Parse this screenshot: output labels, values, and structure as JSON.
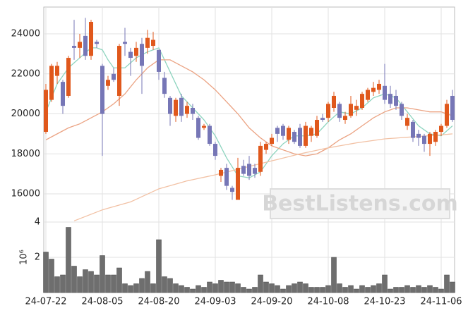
{
  "chart_data": [
    {
      "type": "candlestick",
      "categories": [
        "24-07-22",
        null,
        null,
        null,
        null,
        null,
        null,
        null,
        null,
        null,
        "24-08-05",
        null,
        null,
        null,
        null,
        null,
        null,
        null,
        null,
        null,
        "24-08-20",
        null,
        null,
        null,
        null,
        null,
        null,
        null,
        null,
        null,
        "24-09-03",
        null,
        null,
        null,
        null,
        null,
        null,
        null,
        null,
        null,
        "24-09-20",
        null,
        null,
        null,
        null,
        null,
        null,
        null,
        null,
        null,
        "24-10-08",
        null,
        null,
        null,
        null,
        null,
        null,
        null,
        null,
        null,
        "24-10-23",
        null,
        null,
        null,
        null,
        null,
        null,
        null,
        null,
        null,
        "24-11-06",
        null,
        null
      ],
      "open": [
        19100,
        20700,
        21900,
        21600,
        20900,
        23400,
        23300,
        23900,
        22900,
        23600,
        22400,
        21400,
        22000,
        20900,
        23600,
        23100,
        22900,
        23500,
        23300,
        23400,
        23200,
        21800,
        20800,
        19900,
        20800,
        20000,
        20300,
        19800,
        19300,
        19400,
        18500,
        16900,
        17300,
        16300,
        15700,
        17400,
        17500,
        17300,
        17100,
        18200,
        18500,
        19300,
        19400,
        18700,
        19100,
        19300,
        18400,
        18900,
        18900,
        19800,
        19800,
        20300,
        20500,
        19700,
        19900,
        20200,
        20300,
        20700,
        21100,
        21200,
        21400,
        21000,
        20900,
        20500,
        19400,
        19600,
        19000,
        18900,
        18500,
        18600,
        19100,
        19400,
        20900
      ],
      "high": [
        21500,
        22500,
        22600,
        21700,
        22900,
        24700,
        24000,
        24800,
        24700,
        23700,
        22500,
        21900,
        22300,
        23500,
        24300,
        23300,
        23600,
        23800,
        24200,
        24100,
        23200,
        22100,
        20900,
        20800,
        21000,
        20600,
        20500,
        19900,
        19500,
        19500,
        18600,
        17300,
        17500,
        16400,
        17800,
        17700,
        17900,
        17500,
        18600,
        18600,
        19000,
        19400,
        19500,
        19400,
        19200,
        19500,
        19600,
        19400,
        19900,
        20000,
        20600,
        21100,
        20600,
        20100,
        20900,
        20700,
        21100,
        21300,
        21600,
        21700,
        22500,
        21400,
        21200,
        20600,
        20000,
        19700,
        19200,
        19000,
        19100,
        19200,
        19500,
        20700,
        21200
      ],
      "low": [
        19000,
        20600,
        21500,
        20000,
        20800,
        22700,
        22800,
        22700,
        22700,
        23300,
        17900,
        21200,
        21600,
        20400,
        22900,
        21900,
        22600,
        21000,
        23000,
        23200,
        21700,
        20800,
        19400,
        19600,
        19600,
        19800,
        19700,
        18700,
        19200,
        18400,
        17700,
        16600,
        16200,
        15700,
        15700,
        16900,
        16700,
        16800,
        16900,
        18000,
        18400,
        18600,
        18700,
        18500,
        18500,
        18300,
        18300,
        18600,
        18800,
        19600,
        19600,
        20100,
        19600,
        19500,
        19800,
        19900,
        20200,
        20600,
        20900,
        21000,
        20500,
        20300,
        20200,
        19700,
        19200,
        18600,
        18400,
        18100,
        17900,
        18400,
        18900,
        19300,
        19600
      ],
      "close": [
        21200,
        22400,
        22400,
        20400,
        22800,
        23300,
        23600,
        22900,
        24600,
        23500,
        20000,
        21700,
        21700,
        23400,
        23500,
        22800,
        23300,
        22400,
        23800,
        23700,
        22100,
        21000,
        20000,
        20700,
        19900,
        20400,
        20000,
        18800,
        19400,
        18500,
        17900,
        17200,
        16400,
        16100,
        17300,
        17000,
        16900,
        17000,
        18400,
        18500,
        18800,
        19000,
        18900,
        19300,
        18600,
        18400,
        19400,
        19300,
        19700,
        19700,
        20500,
        20900,
        19800,
        19900,
        20500,
        20400,
        21000,
        21200,
        21300,
        21500,
        20700,
        20500,
        20400,
        19900,
        19800,
        18800,
        18800,
        18500,
        19000,
        19100,
        19400,
        20500,
        19700
      ],
      "up_color": "#e0581c",
      "down_color": "#7676b6",
      "series": [
        {
          "color": "#8ed4bf",
          "values": [
            20100,
            20800,
            21500,
            21900,
            22300,
            22550,
            22800,
            23050,
            23300,
            23300,
            23200,
            22700,
            22300,
            22300,
            22300,
            22550,
            22800,
            22950,
            23100,
            23200,
            23300,
            22700,
            22100,
            21500,
            20900,
            20600,
            20300,
            20000,
            19700,
            19300,
            18900,
            18350,
            17800,
            17350,
            16900,
            16850,
            16800,
            16950,
            17100,
            17500,
            17900,
            18200,
            18500,
            18700,
            18900,
            18900,
            18900,
            18950,
            19000,
            19300,
            19600,
            19850,
            20100,
            20050,
            20000,
            20150,
            20300,
            20550,
            20800,
            20900,
            21000,
            20900,
            20800,
            20450,
            20100,
            19750,
            19400,
            19200,
            19000,
            18950,
            18900,
            19150,
            19400
          ]
        },
        {
          "color": "#eba383",
          "values": [
            18700,
            18850,
            19000,
            19150,
            19300,
            19400,
            19500,
            19650,
            19800,
            19950,
            20100,
            20300,
            20500,
            20750,
            21000,
            21350,
            21700,
            22000,
            22300,
            22500,
            22700,
            22700,
            22700,
            22550,
            22400,
            22250,
            22100,
            21900,
            21700,
            21450,
            21200,
            20900,
            20600,
            20300,
            20000,
            19650,
            19300,
            19050,
            18800,
            18600,
            18400,
            18300,
            18200,
            18100,
            18000,
            17950,
            17900,
            17950,
            18000,
            18150,
            18300,
            18500,
            18700,
            18850,
            19000,
            19200,
            19400,
            19600,
            19800,
            19950,
            20100,
            20200,
            20300,
            20300,
            20300,
            20250,
            20200,
            20150,
            20100,
            20100,
            20100,
            20000,
            19900
          ]
        },
        {
          "color": "#f2c1a4",
          "values": [
            null,
            null,
            null,
            null,
            null,
            14650,
            14760,
            14870,
            14980,
            15090,
            15200,
            15280,
            15360,
            15440,
            15520,
            15600,
            15730,
            15860,
            15990,
            16120,
            16250,
            16330,
            16410,
            16490,
            16570,
            16650,
            16710,
            16770,
            16830,
            16890,
            16950,
            17020,
            17090,
            17160,
            17230,
            17300,
            17370,
            17440,
            17510,
            17580,
            17650,
            17720,
            17790,
            17860,
            17930,
            18000,
            18060,
            18120,
            18180,
            18240,
            18300,
            18350,
            18400,
            18450,
            18500,
            18550,
            18590,
            18630,
            18670,
            18710,
            18750,
            18770,
            18790,
            18810,
            18830,
            18850,
            18870,
            18890,
            18910,
            18930,
            18950,
            18975,
            19000
          ]
        }
      ],
      "ylim": [
        14590,
        25340
      ],
      "yticks": [
        16000,
        18000,
        20000,
        22000,
        24000
      ],
      "grid": true
    },
    {
      "type": "bar",
      "y_label": "10⁶",
      "color": "#6e6e6e",
      "values": [
        2.3,
        1.9,
        0.9,
        1.0,
        3.7,
        1.5,
        0.9,
        1.3,
        1.2,
        1.0,
        2.1,
        1.0,
        1.0,
        1.4,
        0.5,
        0.4,
        0.5,
        0.8,
        1.2,
        0.5,
        3.0,
        0.9,
        0.8,
        0.5,
        0.4,
        0.3,
        0.2,
        0.4,
        0.3,
        0.6,
        0.5,
        0.7,
        0.6,
        0.6,
        0.5,
        0.3,
        0.2,
        0.3,
        1.0,
        0.6,
        0.5,
        0.4,
        0.2,
        0.4,
        0.5,
        0.6,
        0.5,
        0.3,
        0.3,
        0.3,
        0.4,
        2.0,
        0.5,
        0.3,
        0.4,
        0.2,
        0.4,
        0.3,
        0.4,
        0.5,
        1.0,
        0.2,
        0.3,
        0.3,
        0.4,
        0.3,
        0.4,
        0.3,
        0.4,
        0.3,
        0.2,
        1.0,
        0.6
      ],
      "ylim": [
        0,
        4
      ],
      "yticks": [
        2,
        4
      ],
      "grid": true
    }
  ],
  "watermark": "BestListens.com"
}
